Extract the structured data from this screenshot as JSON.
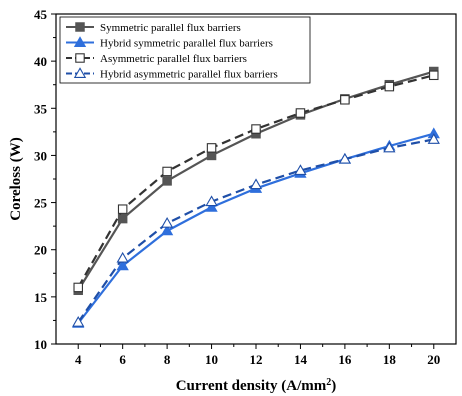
{
  "chart_data": {
    "type": "line",
    "xlabel": "Current density (A/mm",
    "xlabel_sup": "2",
    "xlabel_end": ")",
    "ylabel": "Coreloss (W)",
    "xlim": [
      3,
      21
    ],
    "ylim": [
      10,
      45
    ],
    "xticks": [
      4,
      6,
      8,
      10,
      12,
      14,
      16,
      18,
      20
    ],
    "yticks": [
      10,
      15,
      20,
      25,
      30,
      35,
      40,
      45
    ],
    "grid": false,
    "legend_position": "top-left",
    "series": [
      {
        "name": "Symmetric parallel flux barriers",
        "color": "#555555",
        "marker": "filled-square",
        "dash": "solid",
        "x": [
          4,
          6,
          8,
          10,
          12,
          14,
          16,
          18,
          20
        ],
        "y": [
          15.7,
          23.3,
          27.3,
          30.0,
          32.3,
          34.3,
          36.0,
          37.5,
          38.9
        ]
      },
      {
        "name": "Hybrid symmetric parallel flux barriers",
        "color": "#2f6fdc",
        "marker": "filled-triangle",
        "dash": "solid",
        "x": [
          4,
          6,
          8,
          10,
          12,
          14,
          16,
          18,
          20
        ],
        "y": [
          12.2,
          18.3,
          22.0,
          24.5,
          26.5,
          28.1,
          29.6,
          31.0,
          32.3
        ]
      },
      {
        "name": "Asymmetric parallel flux barriers",
        "color": "#333333",
        "marker": "open-square",
        "dash": "dashed",
        "x": [
          4,
          6,
          8,
          10,
          12,
          14,
          16,
          18,
          20
        ],
        "y": [
          16.0,
          24.3,
          28.3,
          30.8,
          32.8,
          34.5,
          35.9,
          37.3,
          38.5
        ]
      },
      {
        "name": "Hybrid asymmetric parallel flux barriers",
        "color": "#1f4fa8",
        "marker": "open-triangle",
        "dash": "dashed",
        "x": [
          4,
          6,
          8,
          10,
          12,
          14,
          16,
          18,
          20
        ],
        "y": [
          12.3,
          19.1,
          22.8,
          25.1,
          26.9,
          28.4,
          29.6,
          30.8,
          31.7
        ]
      }
    ]
  }
}
